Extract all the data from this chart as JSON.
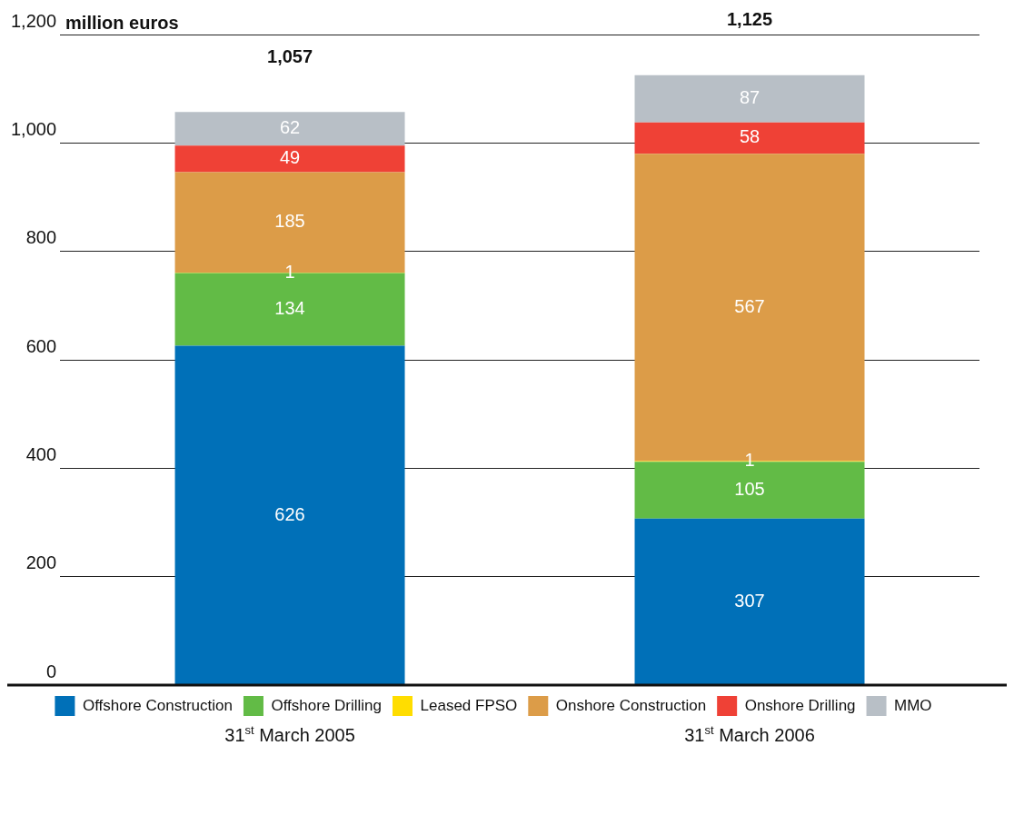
{
  "chart_data": {
    "type": "bar",
    "stacked": true,
    "ylabel": "million euros",
    "categories": [
      "31$^{st}$ March 2005",
      "31$^{st}$ March 2006"
    ],
    "series": [
      {
        "name": "Offshore Construction",
        "color": "#0070b8",
        "values": [
          626,
          307
        ]
      },
      {
        "name": "Offshore Drilling",
        "color": "#62bb46",
        "values": [
          134,
          105
        ]
      },
      {
        "name": "Leased FPSO",
        "color": "#ffdd00",
        "values": [
          1,
          1
        ]
      },
      {
        "name": "Onshore Construction",
        "color": "#dc9c48",
        "values": [
          185,
          567
        ]
      },
      {
        "name": "Onshore Drilling",
        "color": "#ef4136",
        "values": [
          49,
          58
        ]
      },
      {
        "name": "MMO",
        "color": "#b8bfc6",
        "values": [
          62,
          87
        ]
      }
    ],
    "data_labels": true,
    "totals": [
      "1,057",
      "1,125"
    ],
    "ylim": [
      0,
      1200
    ],
    "yticks": [
      0,
      200,
      400,
      600,
      800,
      {
        "value": 1000,
        "label": "1,000"
      },
      {
        "value": 1200,
        "label": "1,200"
      }
    ],
    "grid": "y",
    "legend": "bottom"
  }
}
